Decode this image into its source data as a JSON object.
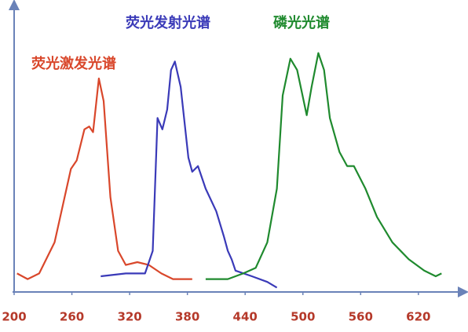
{
  "chart_data": {
    "type": "line",
    "xlim": [
      200,
      665
    ],
    "ylim": [
      0,
      100
    ],
    "xticks": [
      200,
      260,
      320,
      380,
      440,
      500,
      560,
      620
    ],
    "series": [
      {
        "name": "荧光激发光谱",
        "color": "#d9472b",
        "x": [
          203,
          214,
          226,
          242,
          259,
          265,
          273,
          278,
          282,
          288,
          293,
          300,
          308,
          316,
          328,
          340,
          353,
          365,
          385
        ],
        "values": [
          6,
          4,
          6,
          17,
          43,
          46,
          57,
          58,
          56,
          75,
          67,
          33,
          14,
          9,
          10,
          9,
          6,
          4,
          4
        ]
      },
      {
        "name": "荧光发射光谱",
        "color": "#3a3ab8",
        "x": [
          290,
          316,
          336,
          344,
          349,
          354,
          359,
          363,
          367,
          373,
          381,
          385,
          391,
          399,
          410,
          418,
          422,
          426,
          430,
          447,
          463,
          473
        ],
        "values": [
          5,
          6,
          6,
          14,
          61,
          57,
          64,
          78,
          81,
          72,
          47,
          42,
          44,
          36,
          28,
          19,
          14,
          11,
          7,
          5,
          3,
          1
        ]
      },
      {
        "name": "磷光光谱",
        "color": "#1f8a2e",
        "x": [
          399,
          422,
          438,
          451,
          463,
          473,
          479,
          487,
          494,
          504,
          509,
          516,
          522,
          528,
          538,
          546,
          553,
          565,
          577,
          593,
          610,
          626,
          638,
          644
        ],
        "values": [
          4,
          4,
          6,
          8,
          17,
          36,
          69,
          82,
          78,
          62,
          72,
          84,
          78,
          61,
          49,
          44,
          44,
          36,
          26,
          17,
          11,
          7,
          5,
          6
        ]
      }
    ]
  }
}
